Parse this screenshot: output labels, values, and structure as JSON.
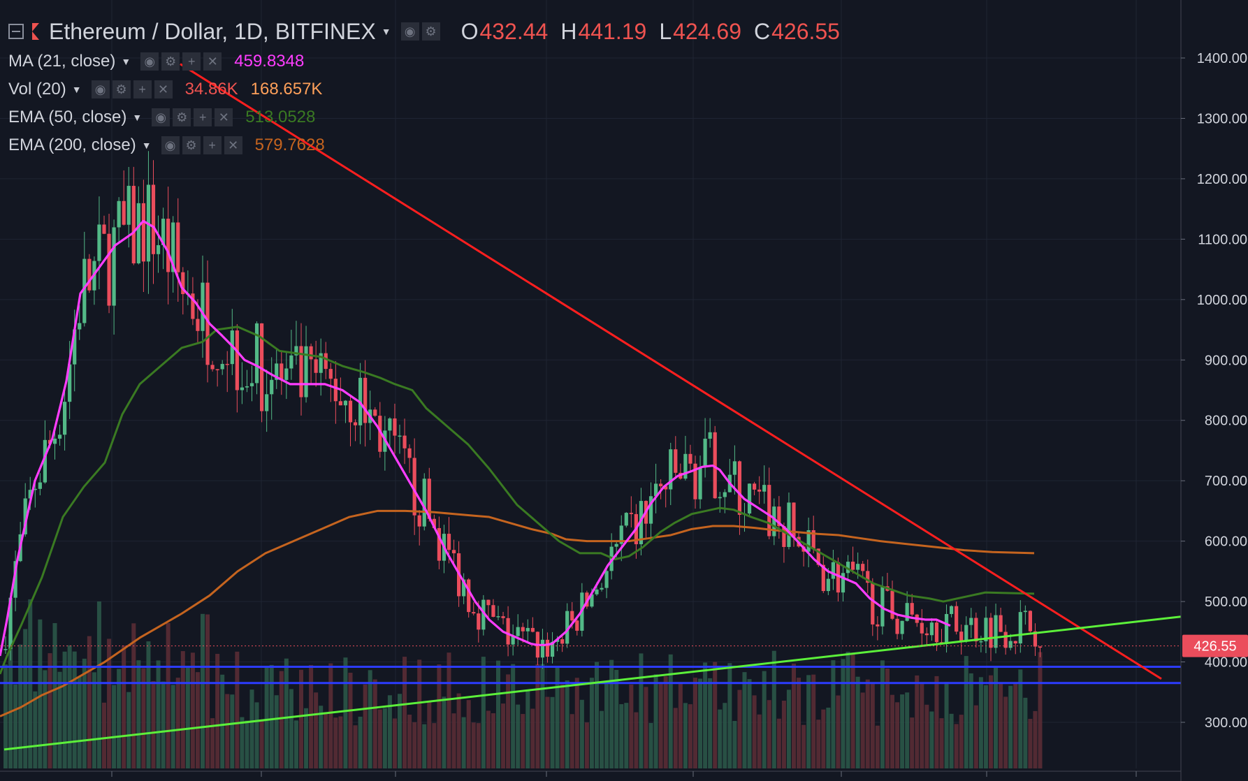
{
  "header": {
    "symbol": "Ethereum / Dollar, 1D, BITFINEX",
    "ohlc": [
      {
        "key": "O",
        "value": "432.44"
      },
      {
        "key": "H",
        "value": "441.19"
      },
      {
        "key": "L",
        "value": "424.69"
      },
      {
        "key": "C",
        "value": "426.55"
      }
    ]
  },
  "indicators": [
    {
      "label": "MA (21, close)",
      "value": "459.8348",
      "color": "#ff3dff"
    },
    {
      "label": "Vol (20)",
      "value": "34.86K",
      "value2": "168.657K",
      "color": "#ef5350",
      "color2": "#ffa05a"
    },
    {
      "label": "EMA (50, close)",
      "value": "513.0528",
      "color": "#3a7a22"
    },
    {
      "label": "EMA (200, close)",
      "value": "579.7628",
      "color": "#c5641f"
    }
  ],
  "icons": [
    "collapse-icon",
    "flag-icon",
    "eye-icon",
    "gear-icon",
    "plus-icon",
    "close-icon"
  ],
  "chart_data": {
    "type": "candlestick",
    "symbol": "Ethereum / Dollar",
    "interval": "1D",
    "exchange": "BITFINEX",
    "y_ticks": [
      "1400.00",
      "1300.00",
      "1200.00",
      "1100.00",
      "1000.00",
      "900.00",
      "800.00",
      "700.00",
      "600.00",
      "500.00",
      "400.00",
      "300.00"
    ],
    "ylim": [
      232,
      1490
    ],
    "last_price": "426.55",
    "colors": {
      "up": "#53b987",
      "down": "#eb4d5c",
      "background": "#131722"
    },
    "ma21": [
      [
        0,
        410
      ],
      [
        10,
        470
      ],
      [
        25,
        570
      ],
      [
        50,
        700
      ],
      [
        75,
        770
      ],
      [
        95,
        865
      ],
      [
        115,
        1010
      ],
      [
        140,
        1050
      ],
      [
        165,
        1090
      ],
      [
        190,
        1110
      ],
      [
        205,
        1130
      ],
      [
        220,
        1120
      ],
      [
        240,
        1080
      ],
      [
        260,
        1020
      ],
      [
        280,
        995
      ],
      [
        300,
        960
      ],
      [
        318,
        940
      ],
      [
        335,
        920
      ],
      [
        350,
        900
      ],
      [
        368,
        890
      ],
      [
        390,
        875
      ],
      [
        415,
        860
      ],
      [
        440,
        860
      ],
      [
        465,
        860
      ],
      [
        490,
        850
      ],
      [
        515,
        830
      ],
      [
        540,
        790
      ],
      [
        565,
        740
      ],
      [
        590,
        690
      ],
      [
        610,
        650
      ],
      [
        640,
        580
      ],
      [
        660,
        540
      ],
      [
        680,
        500
      ],
      [
        700,
        470
      ],
      [
        720,
        450
      ],
      [
        740,
        440
      ],
      [
        760,
        430
      ],
      [
        770,
        428
      ],
      [
        780,
        428
      ],
      [
        790,
        430
      ],
      [
        810,
        450
      ],
      [
        830,
        480
      ],
      [
        850,
        520
      ],
      [
        870,
        560
      ],
      [
        890,
        590
      ],
      [
        910,
        620
      ],
      [
        930,
        660
      ],
      [
        950,
        690
      ],
      [
        970,
        708
      ],
      [
        990,
        716
      ],
      [
        1005,
        723
      ],
      [
        1020,
        725
      ],
      [
        1030,
        718
      ],
      [
        1045,
        695
      ],
      [
        1065,
        670
      ],
      [
        1085,
        655
      ],
      [
        1105,
        640
      ],
      [
        1125,
        620
      ],
      [
        1145,
        595
      ],
      [
        1165,
        570
      ],
      [
        1185,
        550
      ],
      [
        1205,
        540
      ],
      [
        1225,
        530
      ],
      [
        1245,
        505
      ],
      [
        1265,
        488
      ],
      [
        1285,
        478
      ],
      [
        1305,
        473
      ],
      [
        1325,
        470
      ],
      [
        1340,
        470
      ],
      [
        1360,
        460
      ]
    ],
    "ema50": [
      [
        0,
        380
      ],
      [
        10,
        410
      ],
      [
        30,
        460
      ],
      [
        60,
        540
      ],
      [
        90,
        640
      ],
      [
        120,
        690
      ],
      [
        150,
        730
      ],
      [
        175,
        810
      ],
      [
        200,
        860
      ],
      [
        230,
        890
      ],
      [
        260,
        920
      ],
      [
        290,
        930
      ],
      [
        310,
        950
      ],
      [
        340,
        955
      ],
      [
        370,
        940
      ],
      [
        400,
        915
      ],
      [
        430,
        910
      ],
      [
        460,
        905
      ],
      [
        490,
        890
      ],
      [
        520,
        880
      ],
      [
        545,
        870
      ],
      [
        565,
        860
      ],
      [
        590,
        850
      ],
      [
        610,
        820
      ],
      [
        640,
        790
      ],
      [
        670,
        760
      ],
      [
        700,
        720
      ],
      [
        720,
        690
      ],
      [
        740,
        660
      ],
      [
        770,
        630
      ],
      [
        800,
        600
      ],
      [
        830,
        580
      ],
      [
        860,
        580
      ],
      [
        880,
        570
      ],
      [
        900,
        575
      ],
      [
        920,
        590
      ],
      [
        945,
        615
      ],
      [
        965,
        630
      ],
      [
        990,
        645
      ],
      [
        1010,
        650
      ],
      [
        1030,
        655
      ],
      [
        1050,
        652
      ],
      [
        1075,
        640
      ],
      [
        1100,
        630
      ],
      [
        1130,
        610
      ],
      [
        1160,
        590
      ],
      [
        1190,
        570
      ],
      [
        1220,
        550
      ],
      [
        1250,
        530
      ],
      [
        1275,
        520
      ],
      [
        1300,
        510
      ],
      [
        1330,
        505
      ],
      [
        1350,
        500
      ],
      [
        1370,
        505
      ],
      [
        1390,
        510
      ],
      [
        1410,
        515
      ],
      [
        1480,
        513
      ]
    ],
    "ema200": [
      [
        0,
        310
      ],
      [
        30,
        325
      ],
      [
        60,
        345
      ],
      [
        90,
        360
      ],
      [
        120,
        380
      ],
      [
        150,
        400
      ],
      [
        175,
        420
      ],
      [
        200,
        440
      ],
      [
        230,
        460
      ],
      [
        260,
        480
      ],
      [
        300,
        510
      ],
      [
        340,
        550
      ],
      [
        380,
        580
      ],
      [
        420,
        600
      ],
      [
        460,
        620
      ],
      [
        500,
        640
      ],
      [
        540,
        650
      ],
      [
        580,
        650
      ],
      [
        620,
        648
      ],
      [
        650,
        645
      ],
      [
        680,
        642
      ],
      [
        700,
        640
      ],
      [
        730,
        630
      ],
      [
        760,
        620
      ],
      [
        790,
        612
      ],
      [
        810,
        603
      ],
      [
        840,
        600
      ],
      [
        870,
        600
      ],
      [
        900,
        600
      ],
      [
        930,
        605
      ],
      [
        960,
        610
      ],
      [
        990,
        620
      ],
      [
        1020,
        625
      ],
      [
        1050,
        625
      ],
      [
        1080,
        622
      ],
      [
        1110,
        618
      ],
      [
        1140,
        615
      ],
      [
        1170,
        612
      ],
      [
        1200,
        610
      ],
      [
        1230,
        605
      ],
      [
        1260,
        600
      ],
      [
        1300,
        595
      ],
      [
        1340,
        590
      ],
      [
        1380,
        585
      ],
      [
        1420,
        582
      ],
      [
        1480,
        580
      ]
    ],
    "resistance_line": [
      [
        258,
        1390
      ],
      [
        1662,
        372
      ]
    ],
    "support_line": [
      [
        6,
        255
      ],
      [
        1690,
        475
      ]
    ],
    "horizontal_levels": [
      392,
      365
    ],
    "price_line": 426.55
  }
}
